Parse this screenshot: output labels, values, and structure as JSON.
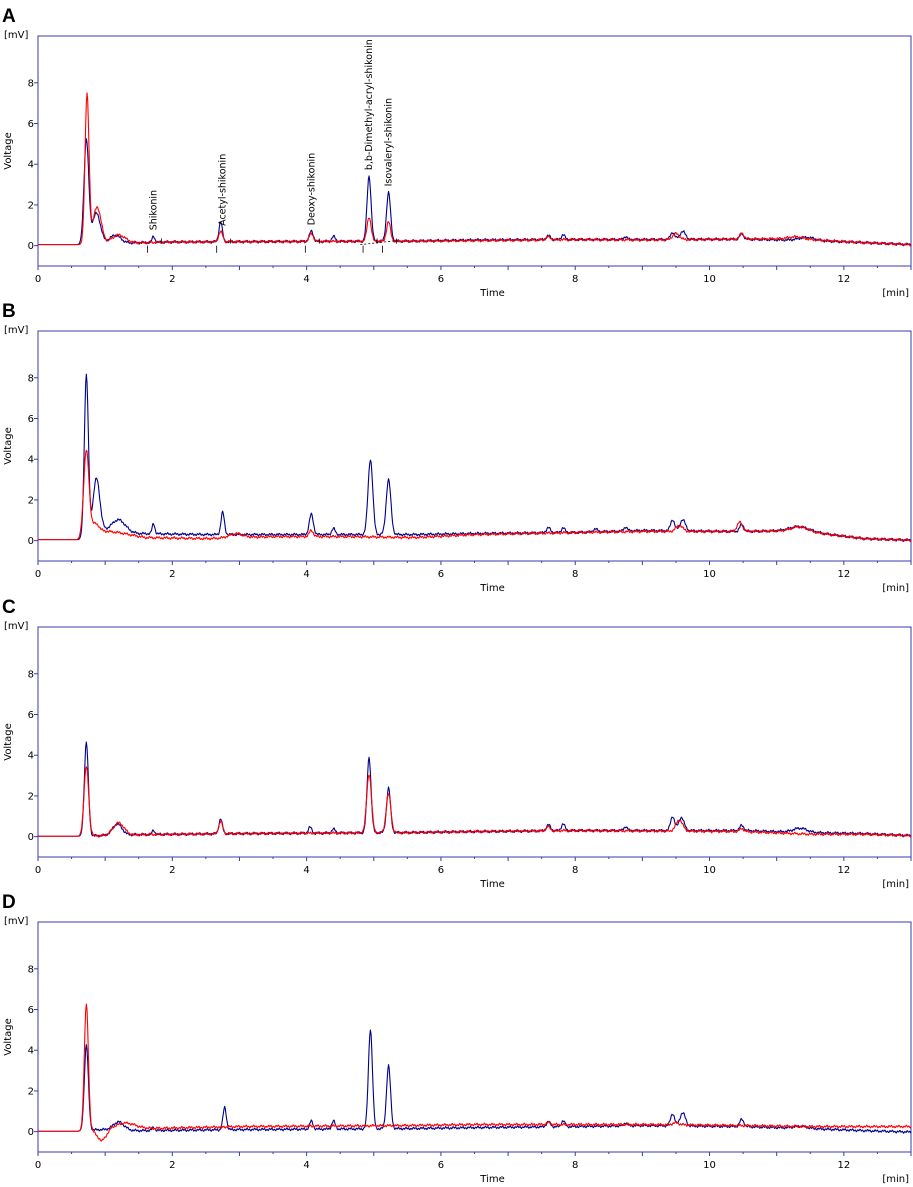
{
  "chart_data": [
    {
      "type": "line",
      "panel": "A",
      "ylabel": "Voltage",
      "yunit": "[mV]",
      "xlabel": "Time",
      "xunit": "[min]",
      "xlim": [
        0,
        13
      ],
      "ylim": [
        -1,
        10.3
      ],
      "xticks": [
        "0",
        "2",
        "4",
        "6",
        "8",
        "10",
        "12"
      ],
      "yticks": [
        "0",
        "2",
        "4",
        "6",
        "8"
      ],
      "annotations": [
        {
          "text": "Shikonin",
          "x": 1.72
        },
        {
          "text": "Acetyl-shikonin",
          "x": 2.75
        },
        {
          "text": "Deoxy-shikonin",
          "x": 4.07
        },
        {
          "text": "b,b-Dimethyl-acryl-shikonin",
          "x": 4.93
        },
        {
          "text": "Isovaleryl-shikonin",
          "x": 5.22
        }
      ],
      "series": [
        {
          "color": "#00008b",
          "baseline": [
            [
              0,
              0.05
            ],
            [
              0.6,
              0.05
            ],
            [
              0.9,
              0.1
            ],
            [
              2,
              0.18
            ],
            [
              3.5,
              0.2
            ],
            [
              5.5,
              0.22
            ],
            [
              6.5,
              0.28
            ],
            [
              8,
              0.3
            ],
            [
              9,
              0.3
            ],
            [
              10.5,
              0.32
            ],
            [
              11.5,
              0.25
            ],
            [
              12.3,
              0.15
            ],
            [
              13,
              0.05
            ]
          ],
          "peaks": [
            [
              0.72,
              5.1,
              0.035
            ],
            [
              0.87,
              1.5,
              0.06
            ],
            [
              1.15,
              0.4,
              0.08
            ],
            [
              1.72,
              0.3,
              0.02
            ],
            [
              2.72,
              1.0,
              0.025
            ],
            [
              4.07,
              0.5,
              0.03
            ],
            [
              4.4,
              0.25,
              0.025
            ],
            [
              4.93,
              3.2,
              0.03
            ],
            [
              5.22,
              2.4,
              0.03
            ],
            [
              7.6,
              0.2,
              0.03
            ],
            [
              7.82,
              0.25,
              0.025
            ],
            [
              8.75,
              0.15,
              0.025
            ],
            [
              9.45,
              0.35,
              0.03
            ],
            [
              9.6,
              0.4,
              0.04
            ],
            [
              10.48,
              0.25,
              0.03
            ],
            [
              11.45,
              0.15,
              0.12
            ]
          ]
        },
        {
          "color": "#ff0000",
          "baseline": [
            [
              0,
              0.05
            ],
            [
              0.6,
              0.05
            ],
            [
              0.9,
              0.1
            ],
            [
              2,
              0.18
            ],
            [
              3.5,
              0.2
            ],
            [
              5.5,
              0.22
            ],
            [
              6.5,
              0.25
            ],
            [
              8,
              0.3
            ],
            [
              9,
              0.28
            ],
            [
              10.5,
              0.32
            ],
            [
              11.2,
              0.35
            ],
            [
              12.3,
              0.15
            ],
            [
              13,
              0.05
            ]
          ],
          "peaks": [
            [
              0.73,
              7.3,
              0.03
            ],
            [
              0.88,
              1.8,
              0.06
            ],
            [
              1.2,
              0.4,
              0.1
            ],
            [
              2.72,
              0.5,
              0.03
            ],
            [
              4.07,
              0.4,
              0.03
            ],
            [
              4.93,
              1.2,
              0.03
            ],
            [
              5.22,
              0.95,
              0.03
            ],
            [
              7.6,
              0.15,
              0.03
            ],
            [
              9.5,
              0.3,
              0.05
            ],
            [
              10.48,
              0.3,
              0.03
            ],
            [
              11.3,
              0.1,
              0.1
            ]
          ]
        }
      ]
    },
    {
      "type": "line",
      "panel": "B",
      "ylabel": "Voltage",
      "yunit": "[mV]",
      "xlabel": "Time",
      "xunit": "[min]",
      "xlim": [
        0,
        13
      ],
      "ylim": [
        -1,
        10.3
      ],
      "xticks": [
        "0",
        "2",
        "4",
        "6",
        "8",
        "10",
        "12"
      ],
      "yticks": [
        "0",
        "2",
        "4",
        "6",
        "8"
      ],
      "series": [
        {
          "color": "#00008b",
          "baseline": [
            [
              0,
              0.05
            ],
            [
              0.6,
              0.05
            ],
            [
              0.9,
              0.5
            ],
            [
              1.5,
              0.35
            ],
            [
              2.5,
              0.3
            ],
            [
              3.5,
              0.3
            ],
            [
              4.6,
              0.3
            ],
            [
              5.6,
              0.3
            ],
            [
              6.5,
              0.35
            ],
            [
              8,
              0.4
            ],
            [
              9,
              0.5
            ],
            [
              10.5,
              0.45
            ],
            [
              11.3,
              0.5
            ],
            [
              12.3,
              0.1
            ],
            [
              13,
              0.02
            ]
          ],
          "peaks": [
            [
              0.72,
              7.9,
              0.03
            ],
            [
              0.87,
              2.6,
              0.05
            ],
            [
              1.2,
              0.6,
              0.1
            ],
            [
              1.72,
              0.5,
              0.02
            ],
            [
              2.75,
              1.1,
              0.025
            ],
            [
              4.07,
              1.0,
              0.03
            ],
            [
              4.4,
              0.3,
              0.025
            ],
            [
              4.95,
              3.7,
              0.035
            ],
            [
              5.22,
              2.7,
              0.035
            ],
            [
              7.6,
              0.25,
              0.03
            ],
            [
              7.82,
              0.25,
              0.025
            ],
            [
              8.3,
              0.15,
              0.03
            ],
            [
              8.75,
              0.2,
              0.025
            ],
            [
              9.45,
              0.55,
              0.03
            ],
            [
              9.6,
              0.55,
              0.04
            ],
            [
              10.48,
              0.35,
              0.03
            ],
            [
              11.35,
              0.2,
              0.15
            ]
          ]
        },
        {
          "color": "#ff0000",
          "baseline": [
            [
              0,
              0.05
            ],
            [
              0.6,
              0.05
            ],
            [
              0.9,
              0.5
            ],
            [
              1.2,
              0.4
            ],
            [
              1.6,
              0.15
            ],
            [
              2.5,
              0.1
            ],
            [
              3.5,
              0.2
            ],
            [
              4.6,
              0.2
            ],
            [
              5.6,
              0.15
            ],
            [
              6.5,
              0.3
            ],
            [
              8,
              0.4
            ],
            [
              9,
              0.45
            ],
            [
              10.5,
              0.45
            ],
            [
              11.3,
              0.5
            ],
            [
              12.3,
              0.1
            ],
            [
              13,
              0.02
            ]
          ],
          "peaks": [
            [
              0.72,
              4.2,
              0.04
            ],
            [
              0.85,
              0.4,
              0.05
            ],
            [
              2.95,
              0.2,
              0.1
            ],
            [
              4.07,
              0.3,
              0.03
            ],
            [
              9.55,
              0.3,
              0.05
            ],
            [
              10.45,
              0.45,
              0.04
            ],
            [
              11.35,
              0.2,
              0.12
            ]
          ]
        }
      ]
    },
    {
      "type": "line",
      "panel": "C",
      "ylabel": "Voltage",
      "yunit": "[mV]",
      "xlabel": "Time",
      "xunit": "[min]",
      "xlim": [
        0,
        13
      ],
      "ylim": [
        -1,
        10.3
      ],
      "xticks": [
        "0",
        "2",
        "4",
        "6",
        "8",
        "10",
        "12"
      ],
      "yticks": [
        "0",
        "2",
        "4",
        "6",
        "8"
      ],
      "series": [
        {
          "color": "#00008b",
          "baseline": [
            [
              0,
              0.02
            ],
            [
              0.6,
              0.02
            ],
            [
              0.9,
              0.05
            ],
            [
              1.5,
              0.1
            ],
            [
              3,
              0.15
            ],
            [
              5.5,
              0.2
            ],
            [
              6.5,
              0.25
            ],
            [
              8,
              0.3
            ],
            [
              9,
              0.3
            ],
            [
              10.5,
              0.3
            ],
            [
              11.5,
              0.2
            ],
            [
              12.3,
              0.15
            ],
            [
              13,
              0.05
            ]
          ],
          "peaks": [
            [
              0.72,
              4.6,
              0.03
            ],
            [
              1.18,
              0.55,
              0.07
            ],
            [
              1.72,
              0.2,
              0.02
            ],
            [
              2.72,
              0.75,
              0.025
            ],
            [
              4.05,
              0.3,
              0.025
            ],
            [
              4.4,
              0.2,
              0.025
            ],
            [
              4.93,
              3.7,
              0.03
            ],
            [
              5.22,
              2.2,
              0.03
            ],
            [
              7.6,
              0.3,
              0.03
            ],
            [
              7.82,
              0.35,
              0.025
            ],
            [
              8.75,
              0.2,
              0.025
            ],
            [
              9.45,
              0.7,
              0.03
            ],
            [
              9.58,
              0.65,
              0.04
            ],
            [
              10.48,
              0.25,
              0.03
            ],
            [
              11.35,
              0.2,
              0.1
            ]
          ]
        },
        {
          "color": "#ff0000",
          "baseline": [
            [
              0,
              0.02
            ],
            [
              0.6,
              0.02
            ],
            [
              0.9,
              0.05
            ],
            [
              1.5,
              0.1
            ],
            [
              3,
              0.15
            ],
            [
              5.5,
              0.2
            ],
            [
              6.5,
              0.25
            ],
            [
              8,
              0.3
            ],
            [
              9,
              0.28
            ],
            [
              10.5,
              0.25
            ],
            [
              11.5,
              0.12
            ],
            [
              12.3,
              0.12
            ],
            [
              13,
              0.05
            ]
          ],
          "peaks": [
            [
              0.72,
              3.4,
              0.035
            ],
            [
              1.2,
              0.6,
              0.08
            ],
            [
              2.72,
              0.6,
              0.03
            ],
            [
              4.93,
              2.9,
              0.035
            ],
            [
              5.22,
              1.9,
              0.035
            ],
            [
              7.6,
              0.2,
              0.03
            ],
            [
              9.55,
              0.55,
              0.05
            ],
            [
              10.48,
              0.15,
              0.03
            ]
          ]
        }
      ]
    },
    {
      "type": "line",
      "panel": "D",
      "ylabel": "Voltage",
      "yunit": "[mV]",
      "xlabel": "Time",
      "xunit": "[min]",
      "xlim": [
        0,
        13
      ],
      "ylim": [
        -1,
        10.3
      ],
      "xticks": [
        "0",
        "2",
        "4",
        "6",
        "8",
        "10",
        "12"
      ],
      "yticks": [
        "0",
        "2",
        "4",
        "6",
        "8"
      ],
      "series": [
        {
          "color": "#00008b",
          "baseline": [
            [
              0,
              0.02
            ],
            [
              0.6,
              0.02
            ],
            [
              0.9,
              0.1
            ],
            [
              1.5,
              0.05
            ],
            [
              3,
              0.1
            ],
            [
              5.5,
              0.15
            ],
            [
              6.5,
              0.2
            ],
            [
              8,
              0.25
            ],
            [
              9,
              0.3
            ],
            [
              10.5,
              0.25
            ],
            [
              11.5,
              0.15
            ],
            [
              12.3,
              0.05
            ],
            [
              13,
              -0.02
            ]
          ],
          "peaks": [
            [
              0.72,
              4.2,
              0.03
            ],
            [
              1.2,
              0.4,
              0.08
            ],
            [
              1.72,
              0.15,
              0.02
            ],
            [
              2.78,
              1.1,
              0.025
            ],
            [
              4.07,
              0.4,
              0.025
            ],
            [
              4.4,
              0.4,
              0.025
            ],
            [
              4.95,
              4.9,
              0.03
            ],
            [
              5.22,
              3.1,
              0.03
            ],
            [
              7.6,
              0.25,
              0.03
            ],
            [
              7.82,
              0.3,
              0.025
            ],
            [
              8.75,
              0.15,
              0.025
            ],
            [
              9.45,
              0.6,
              0.03
            ],
            [
              9.6,
              0.65,
              0.04
            ],
            [
              10.48,
              0.35,
              0.03
            ],
            [
              11.35,
              0.1,
              0.1
            ]
          ]
        },
        {
          "color": "#ff0000",
          "baseline": [
            [
              0,
              0.02
            ],
            [
              0.6,
              0.02
            ],
            [
              0.8,
              0.1
            ],
            [
              0.95,
              -0.5
            ],
            [
              1.1,
              0.1
            ],
            [
              1.6,
              0.15
            ],
            [
              3,
              0.25
            ],
            [
              5.5,
              0.3
            ],
            [
              6.5,
              0.35
            ],
            [
              8,
              0.35
            ],
            [
              9,
              0.35
            ],
            [
              10.5,
              0.3
            ],
            [
              11.5,
              0.25
            ],
            [
              12.3,
              0.25
            ],
            [
              13,
              0.25
            ]
          ],
          "peaks": [
            [
              0.72,
              6.2,
              0.03
            ],
            [
              1.3,
              0.3,
              0.15
            ],
            [
              7.6,
              0.1,
              0.03
            ],
            [
              9.5,
              0.1,
              0.05
            ]
          ]
        }
      ]
    }
  ]
}
